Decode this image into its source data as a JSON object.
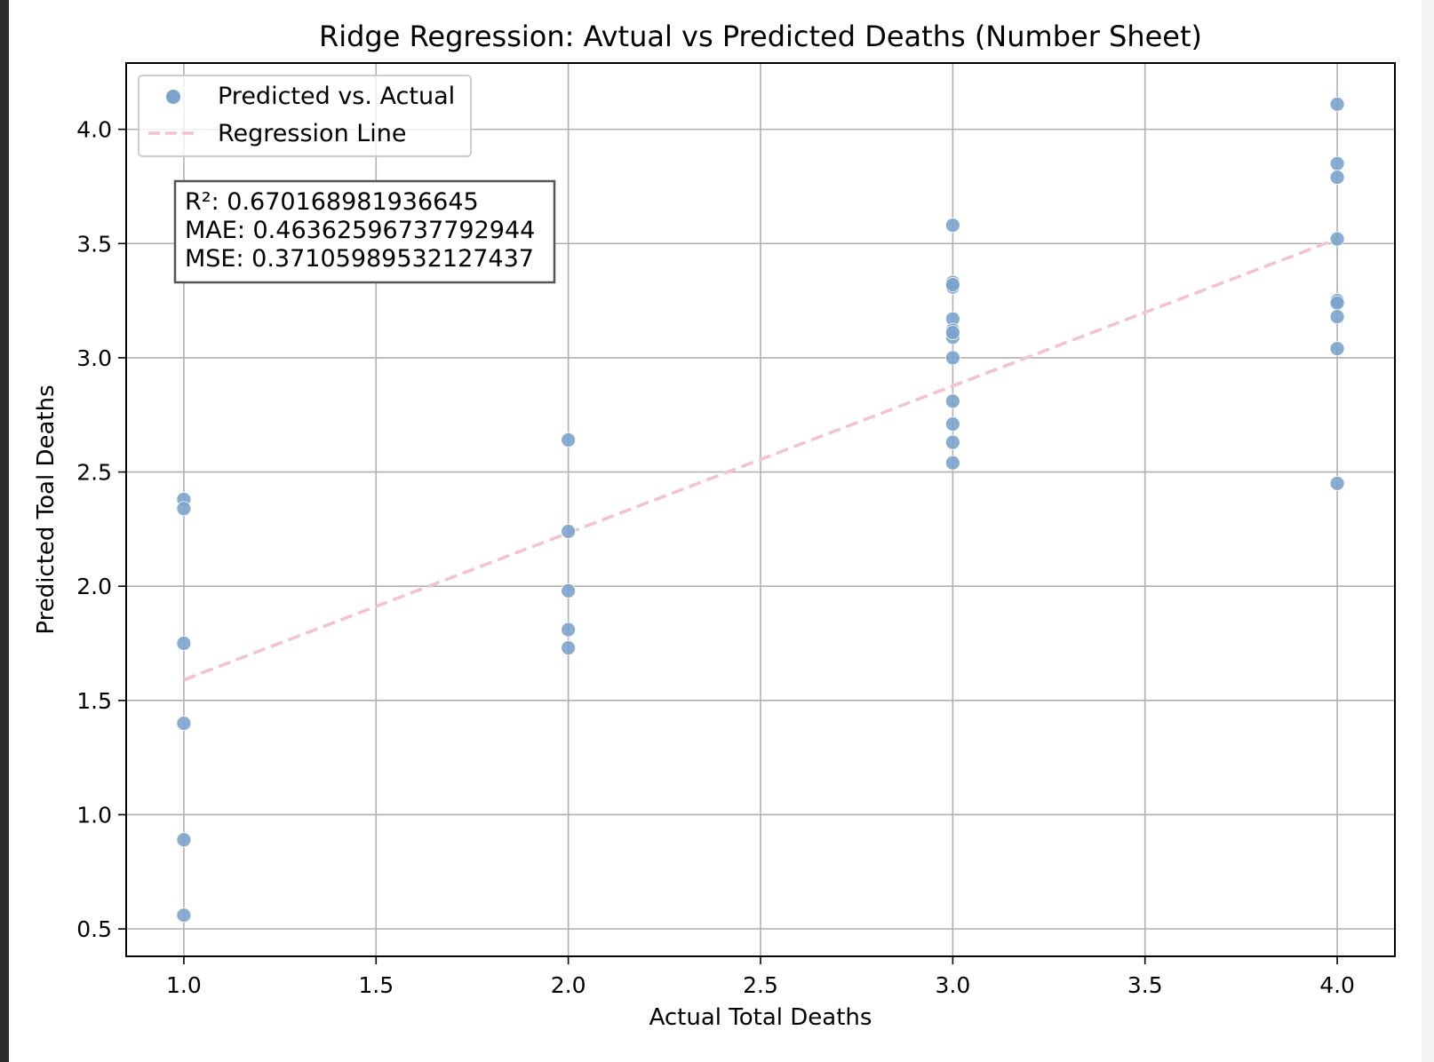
{
  "chart_data": {
    "type": "scatter",
    "title": "Ridge Regression: Avtual vs Predicted Deaths (Number Sheet)",
    "xlabel": "Actual Total Deaths",
    "ylabel": "Predicted Toal Deaths",
    "xlim": [
      0.85,
      4.15
    ],
    "ylim": [
      0.38,
      4.29
    ],
    "xticks": [
      1.0,
      1.5,
      2.0,
      2.5,
      3.0,
      3.5,
      4.0
    ],
    "yticks": [
      0.5,
      1.0,
      1.5,
      2.0,
      2.5,
      3.0,
      3.5,
      4.0
    ],
    "xtick_labels": [
      "1.0",
      "1.5",
      "2.0",
      "2.5",
      "3.0",
      "3.5",
      "4.0"
    ],
    "ytick_labels": [
      "0.5",
      "1.0",
      "1.5",
      "2.0",
      "2.5",
      "3.0",
      "3.5",
      "4.0"
    ],
    "grid": true,
    "legend_position": "top-left",
    "series": [
      {
        "name": "Predicted vs. Actual",
        "kind": "scatter",
        "color": "#7ca3cd",
        "x": [
          1,
          1,
          1,
          1,
          1,
          1,
          2,
          2,
          2,
          2,
          2,
          3,
          3,
          3,
          3,
          3,
          3,
          3,
          3,
          3,
          3,
          3,
          3,
          3,
          4,
          4,
          4,
          4,
          4,
          4,
          4,
          4,
          4
        ],
        "y": [
          2.38,
          2.34,
          1.75,
          1.4,
          0.89,
          0.56,
          2.64,
          2.24,
          1.98,
          1.81,
          1.73,
          3.58,
          3.33,
          3.31,
          3.17,
          3.12,
          3.09,
          3.0,
          2.81,
          2.71,
          2.63,
          2.54,
          3.32,
          3.11,
          4.11,
          3.85,
          3.79,
          3.52,
          3.25,
          3.24,
          3.18,
          3.04,
          2.45
        ]
      },
      {
        "name": "Regression Line",
        "kind": "line",
        "style": "dashed",
        "color": "#f4c2cb",
        "x": [
          1.0,
          4.0
        ],
        "y": [
          1.59,
          3.52
        ]
      }
    ],
    "annotation": {
      "lines": [
        "R²: 0.670168981936645",
        "MAE: 0.46362596737792944",
        "MSE: 0.37105989532127437"
      ]
    }
  }
}
